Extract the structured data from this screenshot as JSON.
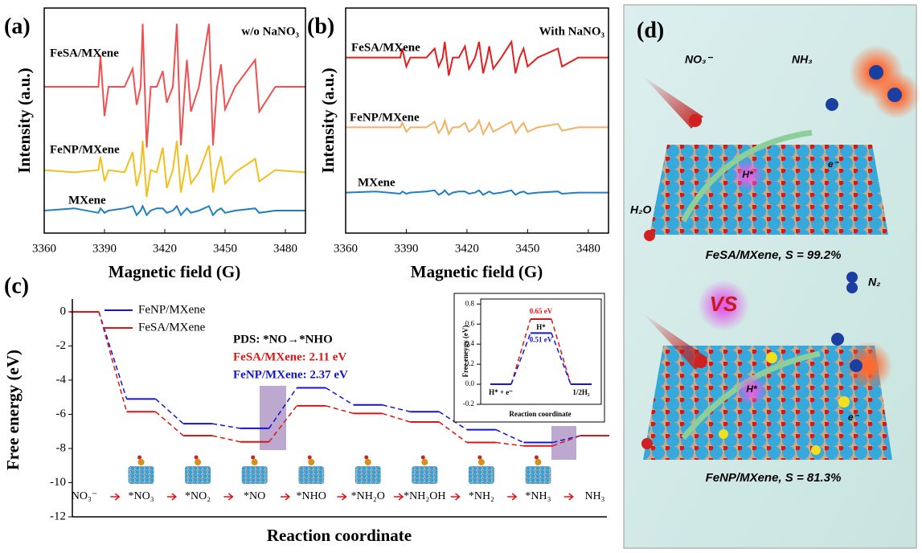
{
  "chart_data": [
    {
      "type": "line",
      "panel_label": "(a)",
      "annotation": "w/o NaNO₃",
      "xlabel": "Magnetic field (G)",
      "ylabel": "Intensity (a.u.)",
      "x": [
        3360,
        3375,
        3387,
        3388,
        3390,
        3392,
        3400,
        3404,
        3406,
        3408,
        3409,
        3411,
        3413,
        3416,
        3419,
        3421,
        3424,
        3426,
        3428,
        3430,
        3431,
        3433,
        3437,
        3442,
        3444,
        3446,
        3448,
        3450,
        3455,
        3465,
        3467,
        3475,
        3490
      ],
      "xlim": [
        3360,
        3490
      ],
      "xticks": [
        3360,
        3390,
        3420,
        3450,
        3480
      ],
      "ylim": [
        0,
        10
      ],
      "series": [
        {
          "name": "FeSA/MXene",
          "color": "#f05050",
          "values": [
            6.5,
            6.5,
            6.5,
            7.9,
            5.2,
            6.5,
            6.5,
            7.3,
            5.7,
            6.5,
            9.3,
            3.8,
            6.5,
            6.5,
            7.2,
            5.8,
            6.5,
            9.3,
            3.9,
            6.5,
            7.7,
            5.4,
            6.5,
            9.3,
            3.9,
            6.5,
            7.5,
            5.5,
            6.5,
            7.7,
            5.4,
            6.5,
            6.5
          ]
        },
        {
          "name": "FeNP/MXene",
          "color": "#f2c01e",
          "values": [
            2.8,
            2.7,
            2.8,
            3.4,
            2.3,
            2.8,
            2.7,
            3.6,
            2.1,
            2.8,
            4.1,
            1.6,
            2.8,
            2.7,
            3.8,
            2.0,
            2.8,
            4.1,
            1.8,
            2.8,
            3.5,
            2.2,
            2.7,
            3.9,
            1.8,
            2.8,
            3.4,
            2.2,
            2.7,
            3.3,
            2.3,
            2.8,
            2.7
          ]
        },
        {
          "name": "MXene",
          "color": "#1f7fc0",
          "values": [
            1.0,
            1.1,
            0.9,
            1.1,
            0.9,
            1.0,
            1.1,
            1.2,
            0.8,
            1.0,
            1.2,
            0.8,
            1.0,
            1.1,
            1.1,
            0.9,
            1.0,
            1.2,
            0.8,
            1.0,
            1.1,
            0.9,
            1.0,
            1.2,
            0.8,
            1.0,
            1.1,
            0.9,
            1.0,
            1.1,
            0.9,
            1.0,
            1.0
          ]
        }
      ]
    },
    {
      "type": "line",
      "panel_label": "(b)",
      "annotation": "With NaNO₃",
      "xlabel": "Magnetic field (G)",
      "ylabel": "Intensity (a.u.)",
      "x": [
        3360,
        3375,
        3387,
        3388,
        3390,
        3392,
        3400,
        3404,
        3406,
        3408,
        3409,
        3411,
        3413,
        3416,
        3419,
        3421,
        3424,
        3426,
        3428,
        3430,
        3431,
        3433,
        3437,
        3442,
        3444,
        3446,
        3448,
        3450,
        3455,
        3465,
        3467,
        3475,
        3490
      ],
      "xlim": [
        3360,
        3490
      ],
      "xticks": [
        3360,
        3390,
        3420,
        3450,
        3480
      ],
      "ylim": [
        0,
        10
      ],
      "series": [
        {
          "name": "FeSA/MXene",
          "color": "#e01f1f",
          "values": [
            7.8,
            7.8,
            7.8,
            8.2,
            7.4,
            7.8,
            7.8,
            8.2,
            7.4,
            7.8,
            8.5,
            7.0,
            7.8,
            7.8,
            8.3,
            7.3,
            7.8,
            8.5,
            7.1,
            7.8,
            8.3,
            7.3,
            7.8,
            8.5,
            7.1,
            7.8,
            8.2,
            7.4,
            7.8,
            8.2,
            7.4,
            7.8,
            7.8
          ]
        },
        {
          "name": "FeNP/MXene",
          "color": "#f5b060",
          "values": [
            4.7,
            4.7,
            4.7,
            4.9,
            4.5,
            4.7,
            4.7,
            4.95,
            4.45,
            4.7,
            5.0,
            4.4,
            4.7,
            4.7,
            4.9,
            4.5,
            4.7,
            5.0,
            4.4,
            4.7,
            4.9,
            4.5,
            4.7,
            4.95,
            4.45,
            4.7,
            4.9,
            4.5,
            4.7,
            4.85,
            4.55,
            4.7,
            4.7
          ]
        },
        {
          "name": "MXene",
          "color": "#1f7fc0",
          "values": [
            1.8,
            1.85,
            1.75,
            1.85,
            1.75,
            1.8,
            1.85,
            1.9,
            1.7,
            1.8,
            1.9,
            1.7,
            1.8,
            1.85,
            1.85,
            1.75,
            1.8,
            1.9,
            1.7,
            1.8,
            1.85,
            1.75,
            1.8,
            1.9,
            1.7,
            1.8,
            1.85,
            1.75,
            1.8,
            1.85,
            1.75,
            1.8,
            1.8
          ]
        }
      ]
    },
    {
      "type": "step",
      "panel_label": "(c)",
      "xlabel": "Reaction coordinate",
      "ylabel": "Free energy (eV)",
      "categories": [
        "NO₃⁻",
        "*NO₃",
        "*NO₂",
        "*NO",
        "*NHO",
        "*NH₂O",
        "*NH₂OH",
        "*NH₂",
        "*NH₃",
        "NH₃"
      ],
      "ylim": [
        -12,
        0.75
      ],
      "yticks": [
        0,
        -2,
        -4,
        -6,
        -8,
        -10,
        -12
      ],
      "series": [
        {
          "name": "FeNP/MXene",
          "color": "#1414d2",
          "values": [
            0,
            -5.1,
            -6.55,
            -6.82,
            -4.45,
            -5.45,
            -5.85,
            -6.9,
            -7.65,
            -7.25
          ]
        },
        {
          "name": "FeSA/MXene",
          "color": "#e01414",
          "values": [
            0,
            -5.85,
            -7.25,
            -7.61,
            -5.5,
            -5.95,
            -6.45,
            -7.65,
            -7.85,
            -7.25
          ]
        }
      ],
      "annotations": [
        {
          "text": "PDS: *NO→*NHO",
          "color": "#000000"
        },
        {
          "text": "FeSA/MXene: 2.11 eV",
          "color": "#e01414"
        },
        {
          "text": "FeNP/MXene: 2.37 eV",
          "color": "#1414d2"
        }
      ]
    },
    {
      "type": "step",
      "xlabel": "Reaction coordinate",
      "ylabel": "Free eneygy (eV)",
      "categories": [
        "H* + e⁻",
        "H*",
        "1/2H₂"
      ],
      "ylim": [
        -0.2,
        0.85
      ],
      "yticks": [
        -0.2,
        {
          "value": 0,
          "label": "0.0"
        },
        0.2,
        0.4,
        0.6,
        0.8
      ],
      "series": [
        {
          "color": "#e01414",
          "values": [
            0,
            0.65,
            0
          ],
          "value_labels": [
            null,
            "0.65 eV",
            null
          ]
        },
        {
          "color": "#1414d2",
          "values": [
            0,
            0.51,
            0
          ],
          "value_labels": [
            null,
            "0.51 eV",
            null
          ]
        }
      ]
    }
  ],
  "illustration": {
    "panel_label": "(d)",
    "nitrate": "NO₃⁻",
    "ammonia": "NH₃",
    "water": "H₂O",
    "hydrogen": "H*",
    "electron": "e⁻",
    "fesa_caption": "FeSA/MXene, S = 99.2%",
    "versus": "VS",
    "nitrogen": "N₂",
    "fenp_caption": "FeNP/MXene, S = 81.3%"
  }
}
